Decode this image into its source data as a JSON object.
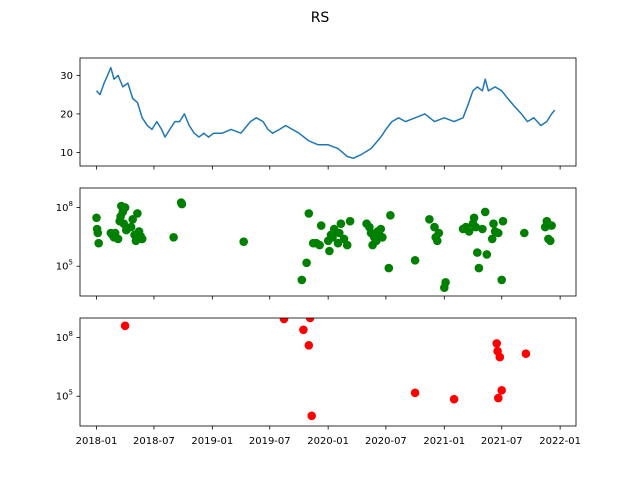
{
  "chart_data": {
    "title": "RS",
    "x_ticks": [
      "2018-01",
      "2018-07",
      "2019-01",
      "2019-07",
      "2020-01",
      "2020-07",
      "2021-01",
      "2021-07",
      "2022-01"
    ],
    "x_range": [
      "2017-11-10",
      "2022-02-20"
    ],
    "panels": [
      {
        "id": "price",
        "type": "line",
        "color": "#1f77b4",
        "ylim": [
          6.5,
          34.5
        ],
        "y_ticks": [
          {
            "value": 10,
            "label": "10"
          },
          {
            "value": 20,
            "label": "20"
          },
          {
            "value": 30,
            "label": "30"
          }
        ],
        "series": [
          {
            "x": "2018-01-01",
            "y": 26
          },
          {
            "x": "2018-01-12",
            "y": 25
          },
          {
            "x": "2018-01-25",
            "y": 28
          },
          {
            "x": "2018-02-05",
            "y": 30
          },
          {
            "x": "2018-02-15",
            "y": 32
          },
          {
            "x": "2018-02-25",
            "y": 29
          },
          {
            "x": "2018-03-10",
            "y": 30
          },
          {
            "x": "2018-03-25",
            "y": 27
          },
          {
            "x": "2018-04-10",
            "y": 28
          },
          {
            "x": "2018-04-25",
            "y": 24
          },
          {
            "x": "2018-05-10",
            "y": 23
          },
          {
            "x": "2018-05-25",
            "y": 19
          },
          {
            "x": "2018-06-10",
            "y": 17
          },
          {
            "x": "2018-06-25",
            "y": 16
          },
          {
            "x": "2018-07-10",
            "y": 18
          },
          {
            "x": "2018-07-25",
            "y": 16
          },
          {
            "x": "2018-08-05",
            "y": 14
          },
          {
            "x": "2018-08-20",
            "y": 16
          },
          {
            "x": "2018-09-05",
            "y": 18
          },
          {
            "x": "2018-09-20",
            "y": 18
          },
          {
            "x": "2018-10-05",
            "y": 20
          },
          {
            "x": "2018-10-20",
            "y": 17
          },
          {
            "x": "2018-11-05",
            "y": 15
          },
          {
            "x": "2018-11-20",
            "y": 14
          },
          {
            "x": "2018-12-05",
            "y": 15
          },
          {
            "x": "2018-12-20",
            "y": 14
          },
          {
            "x": "2019-01-05",
            "y": 15
          },
          {
            "x": "2019-02-01",
            "y": 15
          },
          {
            "x": "2019-03-01",
            "y": 16
          },
          {
            "x": "2019-04-01",
            "y": 15
          },
          {
            "x": "2019-05-01",
            "y": 18
          },
          {
            "x": "2019-05-20",
            "y": 19
          },
          {
            "x": "2019-06-10",
            "y": 18
          },
          {
            "x": "2019-06-25",
            "y": 16
          },
          {
            "x": "2019-07-10",
            "y": 15
          },
          {
            "x": "2019-08-01",
            "y": 16
          },
          {
            "x": "2019-08-20",
            "y": 17
          },
          {
            "x": "2019-09-10",
            "y": 16
          },
          {
            "x": "2019-10-01",
            "y": 15
          },
          {
            "x": "2019-11-01",
            "y": 13
          },
          {
            "x": "2019-12-01",
            "y": 12
          },
          {
            "x": "2020-01-01",
            "y": 12
          },
          {
            "x": "2020-02-01",
            "y": 11
          },
          {
            "x": "2020-03-01",
            "y": 9
          },
          {
            "x": "2020-03-20",
            "y": 8.5
          },
          {
            "x": "2020-04-15",
            "y": 9.5
          },
          {
            "x": "2020-05-15",
            "y": 11
          },
          {
            "x": "2020-06-15",
            "y": 14
          },
          {
            "x": "2020-07-01",
            "y": 16
          },
          {
            "x": "2020-07-20",
            "y": 18
          },
          {
            "x": "2020-08-10",
            "y": 19
          },
          {
            "x": "2020-09-01",
            "y": 18
          },
          {
            "x": "2020-10-01",
            "y": 19
          },
          {
            "x": "2020-11-01",
            "y": 20
          },
          {
            "x": "2020-12-01",
            "y": 18
          },
          {
            "x": "2021-01-01",
            "y": 19
          },
          {
            "x": "2021-02-01",
            "y": 18
          },
          {
            "x": "2021-03-01",
            "y": 19
          },
          {
            "x": "2021-03-15",
            "y": 22
          },
          {
            "x": "2021-04-01",
            "y": 26
          },
          {
            "x": "2021-04-15",
            "y": 27
          },
          {
            "x": "2021-05-01",
            "y": 26
          },
          {
            "x": "2021-05-10",
            "y": 29
          },
          {
            "x": "2021-05-20",
            "y": 26
          },
          {
            "x": "2021-06-10",
            "y": 27
          },
          {
            "x": "2021-07-01",
            "y": 26
          },
          {
            "x": "2021-07-20",
            "y": 24
          },
          {
            "x": "2021-08-10",
            "y": 22
          },
          {
            "x": "2021-09-01",
            "y": 20
          },
          {
            "x": "2021-09-20",
            "y": 18
          },
          {
            "x": "2021-10-10",
            "y": 19
          },
          {
            "x": "2021-11-01",
            "y": 17
          },
          {
            "x": "2021-11-20",
            "y": 18
          },
          {
            "x": "2021-12-05",
            "y": 20
          },
          {
            "x": "2021-12-15",
            "y": 21
          }
        ]
      },
      {
        "id": "volume",
        "type": "scatter",
        "scale": "log",
        "color": "#008000",
        "ylim": [
          3000,
          1000000000
        ],
        "y_ticks": [
          {
            "value": 100000,
            "label": "10^5"
          },
          {
            "value": 100000000,
            "label": "10^8"
          }
        ],
        "points": [
          {
            "x": "2018-01-01",
            "y": 30000000
          },
          {
            "x": "2018-01-03",
            "y": 8000000
          },
          {
            "x": "2018-01-05",
            "y": 5000000
          },
          {
            "x": "2018-01-08",
            "y": 1500000
          },
          {
            "x": "2018-02-15",
            "y": 5000000
          },
          {
            "x": "2018-02-20",
            "y": 4000000
          },
          {
            "x": "2018-02-25",
            "y": 3000000
          },
          {
            "x": "2018-03-01",
            "y": 5000000
          },
          {
            "x": "2018-03-10",
            "y": 2500000
          },
          {
            "x": "2018-03-15",
            "y": 20000000
          },
          {
            "x": "2018-03-18",
            "y": 35000000
          },
          {
            "x": "2018-03-20",
            "y": 120000000
          },
          {
            "x": "2018-03-25",
            "y": 60000000
          },
          {
            "x": "2018-03-28",
            "y": 15000000
          },
          {
            "x": "2018-04-01",
            "y": 100000000
          },
          {
            "x": "2018-04-05",
            "y": 7000000
          },
          {
            "x": "2018-04-20",
            "y": 10000000
          },
          {
            "x": "2018-04-25",
            "y": 25000000
          },
          {
            "x": "2018-05-01",
            "y": 4000000
          },
          {
            "x": "2018-05-05",
            "y": 2000000
          },
          {
            "x": "2018-05-10",
            "y": 50000000
          },
          {
            "x": "2018-05-15",
            "y": 6000000
          },
          {
            "x": "2018-05-20",
            "y": 3500000
          },
          {
            "x": "2018-05-25",
            "y": 2500000
          },
          {
            "x": "2018-09-01",
            "y": 3000000
          },
          {
            "x": "2018-09-25",
            "y": 180000000
          },
          {
            "x": "2018-09-27",
            "y": 150000000
          },
          {
            "x": "2019-04-10",
            "y": 1800000
          },
          {
            "x": "2019-10-10",
            "y": 20000
          },
          {
            "x": "2019-10-25",
            "y": 150000
          },
          {
            "x": "2019-11-01",
            "y": 50000000
          },
          {
            "x": "2019-11-15",
            "y": 1500000
          },
          {
            "x": "2019-11-25",
            "y": 1500000
          },
          {
            "x": "2019-12-05",
            "y": 1200000
          },
          {
            "x": "2019-12-10",
            "y": 12000000
          },
          {
            "x": "2020-01-01",
            "y": 2000000
          },
          {
            "x": "2020-01-05",
            "y": 600000
          },
          {
            "x": "2020-01-10",
            "y": 4000000
          },
          {
            "x": "2020-01-15",
            "y": 3000000
          },
          {
            "x": "2020-01-20",
            "y": 8000000
          },
          {
            "x": "2020-02-01",
            "y": 1500000
          },
          {
            "x": "2020-02-05",
            "y": 5000000
          },
          {
            "x": "2020-02-10",
            "y": 15000000
          },
          {
            "x": "2020-02-20",
            "y": 2500000
          },
          {
            "x": "2020-03-01",
            "y": 1200000
          },
          {
            "x": "2020-03-10",
            "y": 20000000
          },
          {
            "x": "2020-05-01",
            "y": 15000000
          },
          {
            "x": "2020-05-10",
            "y": 10000000
          },
          {
            "x": "2020-05-15",
            "y": 5000000
          },
          {
            "x": "2020-05-20",
            "y": 1200000
          },
          {
            "x": "2020-05-25",
            "y": 3000000
          },
          {
            "x": "2020-06-01",
            "y": 2000000
          },
          {
            "x": "2020-06-05",
            "y": 6000000
          },
          {
            "x": "2020-06-10",
            "y": 4000000
          },
          {
            "x": "2020-06-15",
            "y": 8000000
          },
          {
            "x": "2020-06-20",
            "y": 3000000
          },
          {
            "x": "2020-07-10",
            "y": 80000
          },
          {
            "x": "2020-07-15",
            "y": 40000000
          },
          {
            "x": "2020-10-01",
            "y": 200000
          },
          {
            "x": "2020-11-15",
            "y": 25000000
          },
          {
            "x": "2020-12-01",
            "y": 10000000
          },
          {
            "x": "2020-12-05",
            "y": 3000000
          },
          {
            "x": "2020-12-10",
            "y": 2000000
          },
          {
            "x": "2020-12-15",
            "y": 5000000
          },
          {
            "x": "2021-01-01",
            "y": 8000
          },
          {
            "x": "2021-01-05",
            "y": 15000
          },
          {
            "x": "2021-03-01",
            "y": 8000000
          },
          {
            "x": "2021-03-10",
            "y": 10000000
          },
          {
            "x": "2021-03-20",
            "y": 6000000
          },
          {
            "x": "2021-04-01",
            "y": 15000000
          },
          {
            "x": "2021-04-05",
            "y": 30000000
          },
          {
            "x": "2021-04-10",
            "y": 10000000
          },
          {
            "x": "2021-04-15",
            "y": 500000
          },
          {
            "x": "2021-04-20",
            "y": 80000
          },
          {
            "x": "2021-05-01",
            "y": 8000000
          },
          {
            "x": "2021-05-10",
            "y": 60000000
          },
          {
            "x": "2021-05-15",
            "y": 400000
          },
          {
            "x": "2021-06-01",
            "y": 2500000
          },
          {
            "x": "2021-06-05",
            "y": 15000000
          },
          {
            "x": "2021-06-10",
            "y": 6000000
          },
          {
            "x": "2021-06-20",
            "y": 5000000
          },
          {
            "x": "2021-07-01",
            "y": 20000
          },
          {
            "x": "2021-07-05",
            "y": 20000000
          },
          {
            "x": "2021-09-10",
            "y": 5000000
          },
          {
            "x": "2021-11-15",
            "y": 10000000
          },
          {
            "x": "2021-11-20",
            "y": 20000000
          },
          {
            "x": "2021-11-25",
            "y": 2500000
          },
          {
            "x": "2021-12-01",
            "y": 2000000
          },
          {
            "x": "2021-12-05",
            "y": 12000000
          }
        ]
      },
      {
        "id": "events",
        "type": "scatter",
        "scale": "log",
        "color": "#ff0000",
        "ylim": [
          3000,
          1000000000
        ],
        "y_ticks": [
          {
            "value": 100000,
            "label": "10^5"
          },
          {
            "value": 100000000,
            "label": "10^8"
          }
        ],
        "points": [
          {
            "x": "2018-04-01",
            "y": 400000000
          },
          {
            "x": "2019-08-15",
            "y": 900000000
          },
          {
            "x": "2019-10-15",
            "y": 250000000
          },
          {
            "x": "2019-11-01",
            "y": 40000000
          },
          {
            "x": "2019-11-05",
            "y": 1000000000
          },
          {
            "x": "2019-11-10",
            "y": 10000
          },
          {
            "x": "2020-10-01",
            "y": 150000
          },
          {
            "x": "2021-02-01",
            "y": 70000
          },
          {
            "x": "2021-06-15",
            "y": 50000000
          },
          {
            "x": "2021-06-18",
            "y": 20000000
          },
          {
            "x": "2021-06-25",
            "y": 10000000
          },
          {
            "x": "2021-07-01",
            "y": 200000
          },
          {
            "x": "2021-06-20",
            "y": 80000
          },
          {
            "x": "2021-09-15",
            "y": 15000000
          }
        ]
      }
    ]
  }
}
